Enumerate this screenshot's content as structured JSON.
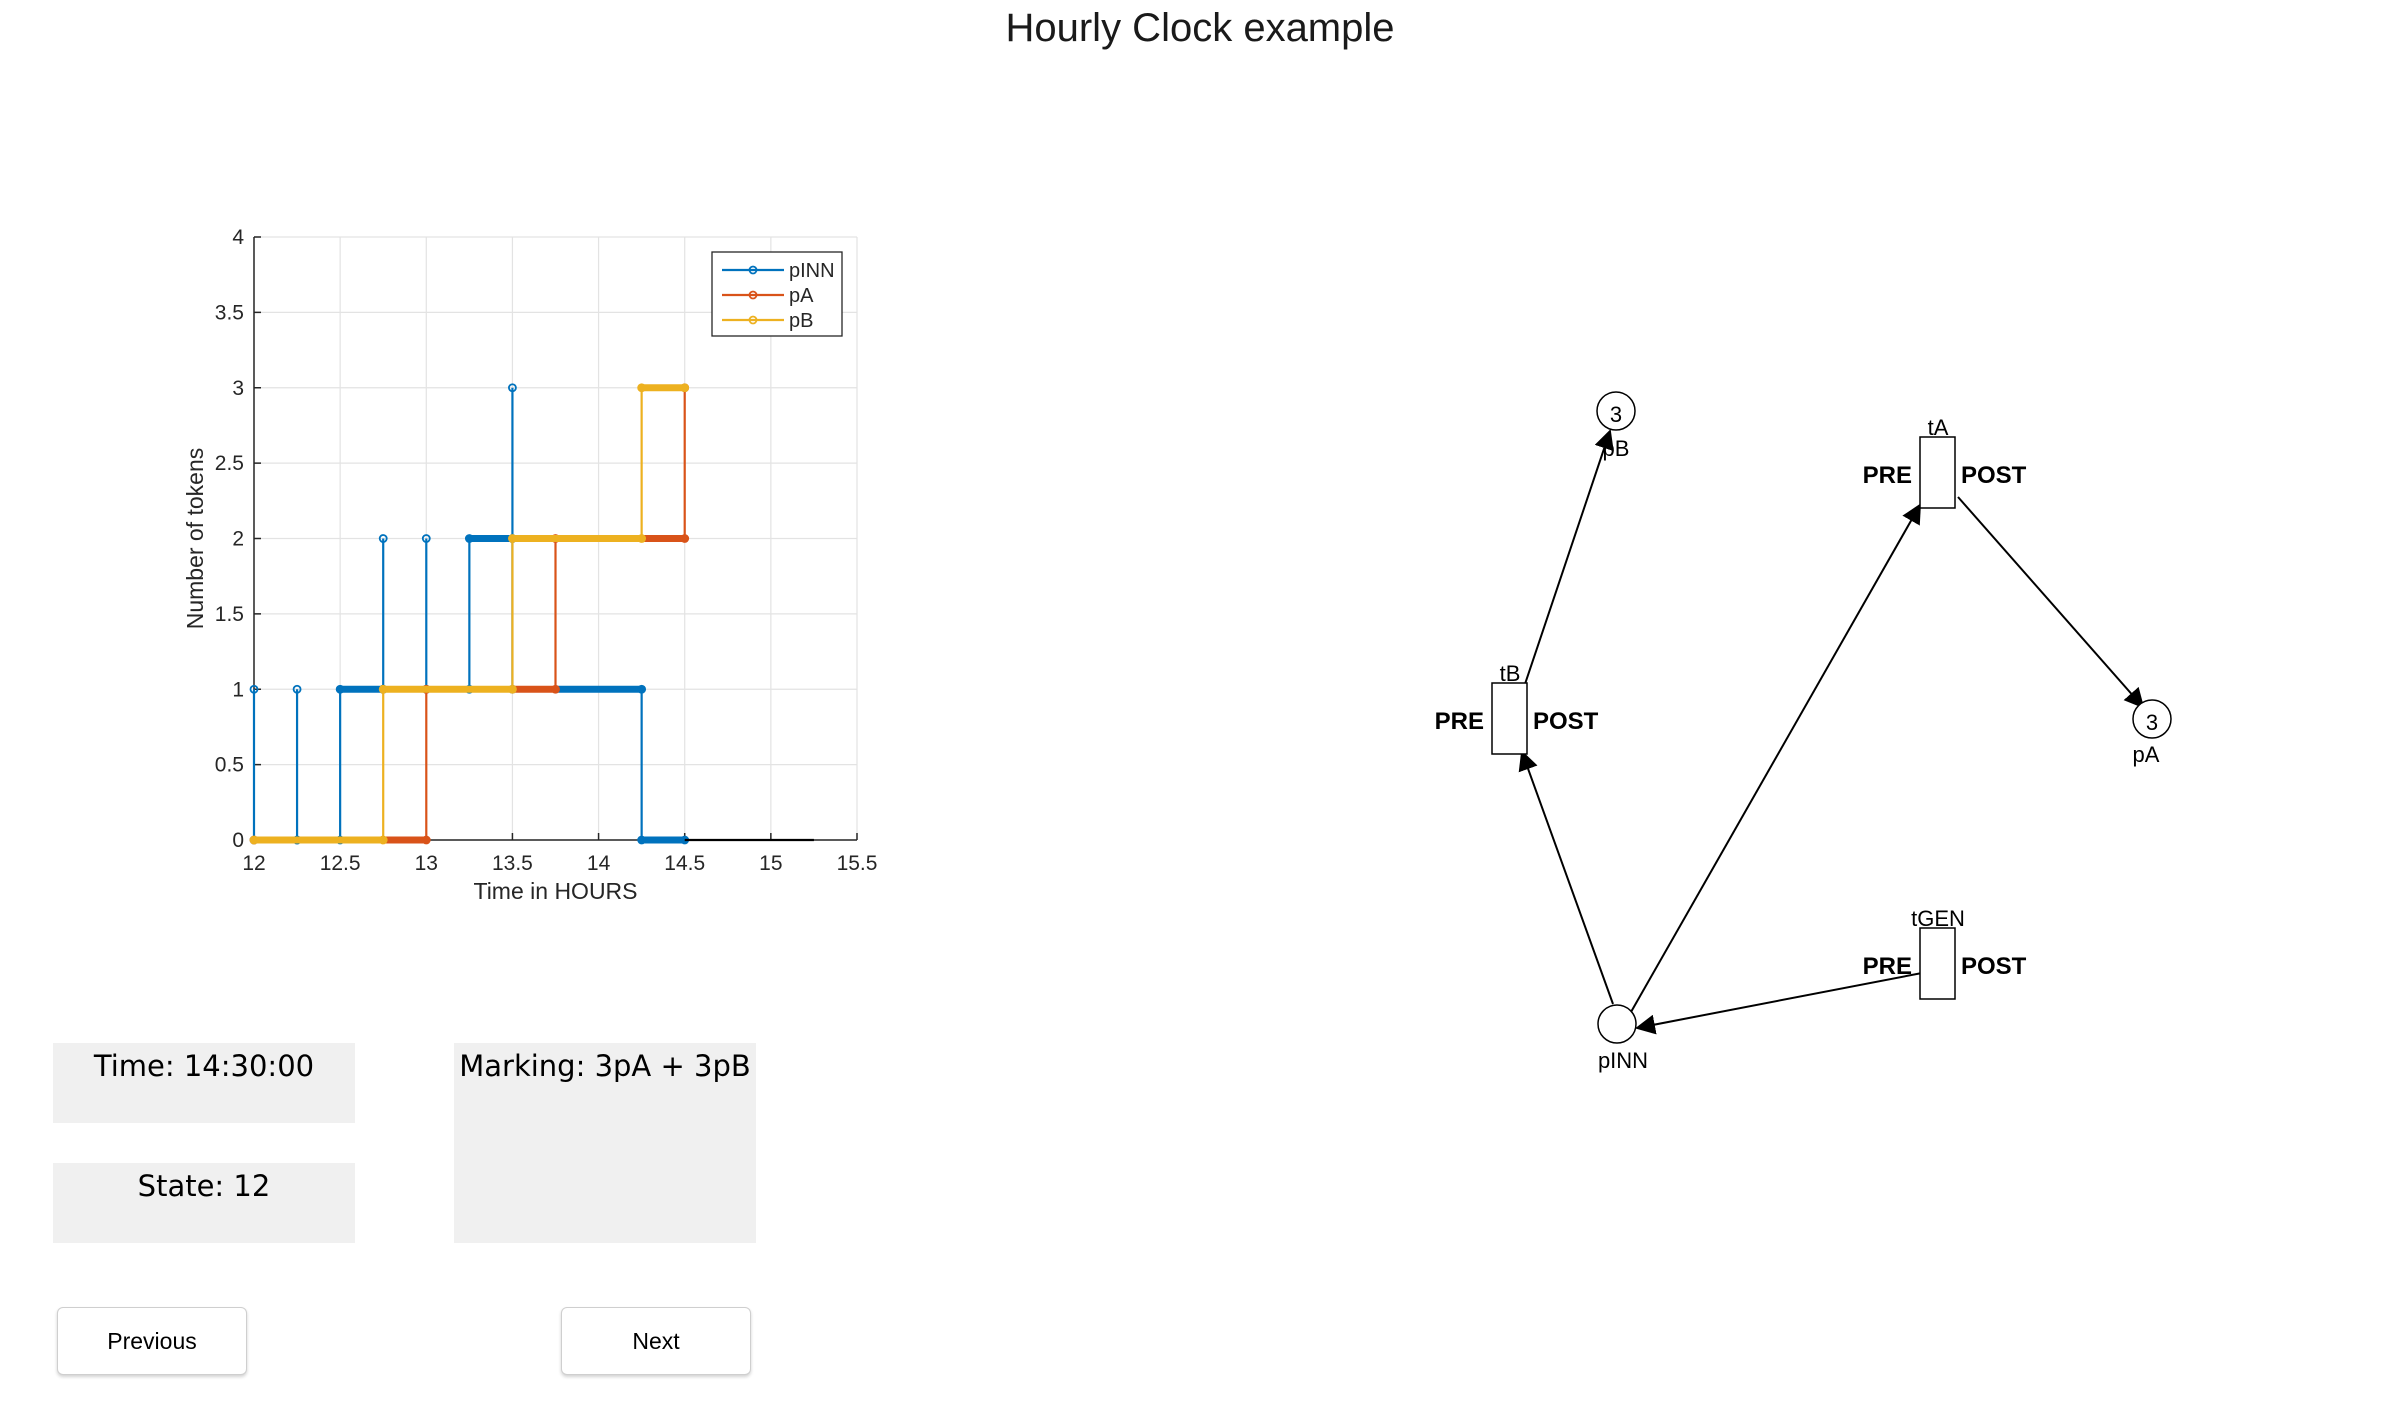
{
  "window": {
    "title": "Hourly Clock example"
  },
  "status": {
    "time_label": "Time: 14:30:00",
    "state_label": "State: 12",
    "marking_label": "Marking: 3pA + 3pB"
  },
  "buttons": {
    "previous": "Previous",
    "next": "Next"
  },
  "colors": {
    "pINN": "#0072BD",
    "pA": "#D95319",
    "pB": "#EDB120",
    "panel": "#f0f0f0"
  },
  "chart_data": {
    "type": "line",
    "title": "",
    "xlabel": "Time in HOURS",
    "ylabel": "Number of tokens",
    "xlim": [
      12,
      15.5
    ],
    "ylim": [
      0,
      4
    ],
    "xticks": [
      12,
      12.5,
      13,
      13.5,
      14,
      14.5,
      15,
      15.5
    ],
    "xtick_labels": [
      "12",
      "12.5",
      "13",
      "13.5",
      "14",
      "14.5",
      "15",
      "15.5"
    ],
    "yticks": [
      0,
      0.5,
      1,
      1.5,
      2,
      2.5,
      3,
      3.5,
      4
    ],
    "ytick_labels": [
      "0",
      "0.5",
      "1",
      "1.5",
      "2",
      "2.5",
      "3",
      "3.5",
      "4"
    ],
    "grid": true,
    "legend": "top-right",
    "series": [
      {
        "name": "pINN",
        "color": "#0072BD",
        "step_points": [
          [
            12,
            1
          ],
          [
            12,
            0
          ],
          [
            12.25,
            0
          ],
          [
            12.25,
            1
          ],
          [
            12.25,
            0
          ],
          [
            12.5,
            0
          ],
          [
            12.5,
            1
          ],
          [
            12.75,
            1
          ],
          [
            12.75,
            2
          ],
          [
            12.75,
            1
          ],
          [
            13,
            1
          ],
          [
            13,
            2
          ],
          [
            13,
            1
          ],
          [
            13.25,
            1
          ],
          [
            13.25,
            2
          ],
          [
            13.5,
            2
          ],
          [
            13.5,
            3
          ],
          [
            13.5,
            2
          ],
          [
            13.5,
            1
          ],
          [
            14.25,
            1
          ],
          [
            14.25,
            0
          ],
          [
            14.5,
            0
          ]
        ],
        "marker_runs": [
          [
            12.5,
            12.75,
            1
          ],
          [
            13.25,
            13.5,
            2
          ],
          [
            13.75,
            14.25,
            1
          ],
          [
            14.25,
            14.5,
            0
          ]
        ]
      },
      {
        "name": "pA",
        "color": "#D95319",
        "step_points": [
          [
            12,
            0
          ],
          [
            13,
            0
          ],
          [
            13,
            1
          ],
          [
            13.75,
            1
          ],
          [
            13.75,
            2
          ],
          [
            14.5,
            2
          ],
          [
            14.5,
            3
          ]
        ],
        "marker_runs": [
          [
            12.75,
            13,
            0
          ],
          [
            13.5,
            13.75,
            1
          ],
          [
            14.25,
            14.5,
            2
          ]
        ]
      },
      {
        "name": "pB",
        "color": "#EDB120",
        "step_points": [
          [
            12,
            0
          ],
          [
            12.75,
            0
          ],
          [
            12.75,
            1
          ],
          [
            13.5,
            1
          ],
          [
            13.5,
            2
          ],
          [
            14.25,
            2
          ],
          [
            14.25,
            3
          ],
          [
            14.5,
            3
          ]
        ],
        "marker_runs": [
          [
            12,
            12.75,
            0
          ],
          [
            12.75,
            13.5,
            1
          ],
          [
            13.5,
            14.25,
            2
          ],
          [
            14.25,
            14.5,
            3
          ]
        ]
      },
      {
        "name": "",
        "color": "#000000",
        "step_points": [
          [
            14.5,
            0
          ],
          [
            15.25,
            0
          ]
        ],
        "marker_runs": []
      }
    ]
  },
  "petri_net": {
    "places": [
      {
        "id": "pB",
        "label": "pB",
        "tokens": "3"
      },
      {
        "id": "pA",
        "label": "pA",
        "tokens": "3"
      },
      {
        "id": "pINN",
        "label": "pINN",
        "tokens": ""
      }
    ],
    "transitions": [
      {
        "id": "tA",
        "label": "tA",
        "pre": "PRE",
        "post": "POST"
      },
      {
        "id": "tB",
        "label": "tB",
        "pre": "PRE",
        "post": "POST"
      },
      {
        "id": "tGEN",
        "label": "tGEN",
        "pre": "PRE",
        "post": "POST"
      }
    ]
  }
}
